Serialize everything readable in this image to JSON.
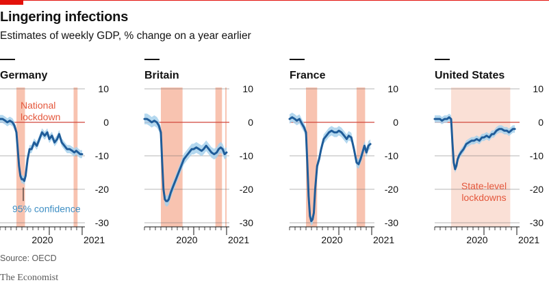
{
  "header": {
    "title": "Lingering infections",
    "subtitle": "Estimates of weekly GDP, % change on a year earlier"
  },
  "footer": {
    "source": "Source: OECD",
    "brand": "The Economist"
  },
  "colors": {
    "line": "#1f5c99",
    "band": "#a7d1ec",
    "shade": "#f7b9a2",
    "shade_light": "#f9dbcf",
    "zero": "#d0453b",
    "grid": "#6b6b6b",
    "annotation_red": "#e4573c",
    "annotation_blue": "#3f8fc4",
    "brand_red": "#e3120b"
  },
  "chart_data": [
    {
      "type": "line",
      "title": "Germany",
      "ylim": [
        -30,
        10
      ],
      "yticks": [
        10,
        0,
        -10,
        -20,
        -30
      ],
      "xlim": [
        2019.75,
        2021.0
      ],
      "xticks": [
        {
          "value": 2020.5,
          "label": "2020"
        },
        {
          "value": 2021.0,
          "label": "2021"
        }
      ],
      "lockdowns": [
        [
          2020.0,
          2020.13
        ],
        [
          2020.87,
          2020.93
        ]
      ],
      "annotations": [
        {
          "text": "National lockdown",
          "color": "red"
        },
        {
          "text": "95% confidence",
          "color": "blue"
        }
      ],
      "series": [
        {
          "x": [
            2019.75,
            2019.79,
            2019.83,
            2019.86,
            2019.9,
            2019.94,
            2019.97,
            2020.0,
            2020.02,
            2020.04,
            2020.06,
            2020.08,
            2020.1,
            2020.12,
            2020.14,
            2020.17,
            2020.2,
            2020.23,
            2020.27,
            2020.31,
            2020.35,
            2020.39,
            2020.43,
            2020.47,
            2020.5,
            2020.54,
            2020.58,
            2020.62,
            2020.65,
            2020.69,
            2020.73,
            2020.77,
            2020.81,
            2020.85,
            2020.88,
            2020.91,
            2020.94,
            2020.97,
            2021.0
          ],
          "values": [
            1,
            1,
            0.5,
            0,
            0.5,
            0,
            -1,
            -3,
            -8,
            -13,
            -16,
            -17,
            -17,
            -17.5,
            -16,
            -11,
            -8,
            -8,
            -6,
            -7,
            -5,
            -3,
            -4,
            -3,
            -5,
            -4,
            -6,
            -5,
            -3.5,
            -6,
            -7,
            -8,
            -8,
            -8.5,
            -9,
            -8.5,
            -9,
            -9.5,
            -9.5
          ],
          "ci": 1.2
        }
      ]
    },
    {
      "type": "line",
      "title": "Britain",
      "ylim": [
        -30,
        10
      ],
      "yticks": [
        10,
        0,
        -10,
        -20,
        -30
      ],
      "xlim": [
        2019.75,
        2021.0
      ],
      "xticks": [
        {
          "value": 2020.5,
          "label": "2020"
        },
        {
          "value": 2021.0,
          "label": "2021"
        }
      ],
      "lockdowns": [
        [
          2020.0,
          2020.33
        ],
        [
          2020.83,
          2020.93
        ],
        [
          2020.98,
          2021.0
        ]
      ],
      "annotations": [],
      "series": [
        {
          "x": [
            2019.75,
            2019.79,
            2019.83,
            2019.86,
            2019.9,
            2019.94,
            2019.97,
            2020.0,
            2020.02,
            2020.04,
            2020.06,
            2020.08,
            2020.1,
            2020.12,
            2020.15,
            2020.19,
            2020.23,
            2020.27,
            2020.31,
            2020.35,
            2020.39,
            2020.43,
            2020.47,
            2020.5,
            2020.54,
            2020.58,
            2020.62,
            2020.65,
            2020.69,
            2020.73,
            2020.77,
            2020.81,
            2020.85,
            2020.88,
            2020.91,
            2020.94,
            2020.97,
            2021.0
          ],
          "values": [
            1,
            1,
            0.5,
            0,
            0.5,
            0,
            -1,
            -3,
            -12,
            -20,
            -23,
            -23.5,
            -23.5,
            -23,
            -21,
            -19,
            -17,
            -15,
            -13,
            -11,
            -10,
            -9,
            -8,
            -8,
            -7.5,
            -8,
            -8.5,
            -8,
            -7,
            -8,
            -9,
            -9.5,
            -9,
            -8,
            -7.5,
            -8,
            -9.5,
            -9
          ],
          "ci": 1.6
        }
      ]
    },
    {
      "type": "line",
      "title": "France",
      "ylim": [
        -30,
        10
      ],
      "yticks": [
        10,
        0,
        -10,
        -20,
        -30
      ],
      "xlim": [
        2019.75,
        2021.0
      ],
      "xticks": [
        {
          "value": 2020.5,
          "label": "2020"
        },
        {
          "value": 2021.0,
          "label": "2021"
        }
      ],
      "lockdowns": [
        [
          2020.0,
          2020.17
        ],
        [
          2020.77,
          2020.9
        ]
      ],
      "annotations": [],
      "series": [
        {
          "x": [
            2019.75,
            2019.79,
            2019.83,
            2019.86,
            2019.9,
            2019.94,
            2019.97,
            2020.0,
            2020.02,
            2020.04,
            2020.06,
            2020.08,
            2020.1,
            2020.12,
            2020.14,
            2020.17,
            2020.2,
            2020.23,
            2020.27,
            2020.31,
            2020.35,
            2020.39,
            2020.43,
            2020.47,
            2020.5,
            2020.54,
            2020.58,
            2020.62,
            2020.65,
            2020.69,
            2020.73,
            2020.77,
            2020.8,
            2020.83,
            2020.86,
            2020.89,
            2020.92,
            2020.95,
            2020.98
          ],
          "values": [
            1,
            1.5,
            1,
            0.5,
            1,
            -0.5,
            -1.5,
            -3,
            -12,
            -22,
            -28,
            -29.5,
            -29,
            -27,
            -20,
            -13,
            -11,
            -8,
            -5,
            -4,
            -3,
            -2.5,
            -3,
            -3,
            -2.5,
            -3,
            -4,
            -5,
            -4,
            -4.5,
            -8,
            -12,
            -12.5,
            -11,
            -9,
            -7,
            -9,
            -7,
            -6.5
          ],
          "ci": 1.4
        }
      ]
    },
    {
      "type": "line",
      "title": "United States",
      "ylim": [
        -30,
        10
      ],
      "yticks": [
        10,
        0,
        -10,
        -20,
        -30
      ],
      "xlim": [
        2019.75,
        2021.0
      ],
      "xticks": [
        {
          "value": 2020.5,
          "label": "2020"
        },
        {
          "value": 2021.0,
          "label": "2021"
        }
      ],
      "lockdowns": [
        [
          2020.0,
          2020.9
        ]
      ],
      "annotations": [
        {
          "text": "State-level lockdowns",
          "color": "red"
        }
      ],
      "series": [
        {
          "x": [
            2019.75,
            2019.79,
            2019.83,
            2019.86,
            2019.9,
            2019.94,
            2019.97,
            2020.0,
            2020.02,
            2020.04,
            2020.06,
            2020.08,
            2020.1,
            2020.12,
            2020.15,
            2020.19,
            2020.23,
            2020.27,
            2020.31,
            2020.35,
            2020.39,
            2020.43,
            2020.47,
            2020.5,
            2020.54,
            2020.58,
            2020.62,
            2020.65,
            2020.69,
            2020.73,
            2020.77,
            2020.81,
            2020.85,
            2020.88,
            2020.91,
            2020.94,
            2020.97
          ],
          "values": [
            1,
            1,
            1,
            0.5,
            1,
            1,
            1.5,
            1,
            -6,
            -12,
            -14,
            -13,
            -11,
            -10,
            -9,
            -8,
            -6.5,
            -6,
            -5.5,
            -5.5,
            -5,
            -5.5,
            -4.5,
            -4.5,
            -4,
            -4.5,
            -3.5,
            -3.5,
            -2.5,
            -2,
            -2,
            -2.5,
            -2.5,
            -3,
            -2.5,
            -2,
            -2
          ],
          "ci": 1.1
        }
      ]
    }
  ]
}
